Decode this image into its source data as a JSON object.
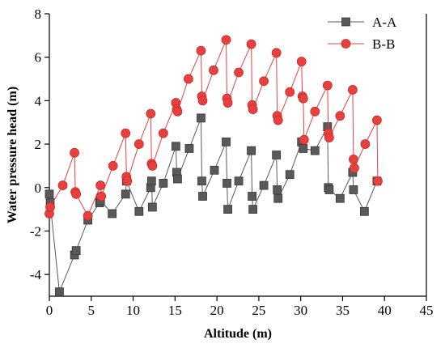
{
  "chart_data": {
    "type": "line",
    "xlabel": "Altitude (m)",
    "ylabel": "Water pressure head (m)",
    "xlim": [
      0,
      45
    ],
    "ylim": [
      -5,
      8
    ],
    "x_ticks": [
      0,
      5,
      10,
      15,
      20,
      25,
      30,
      35,
      40,
      45
    ],
    "y_ticks": [
      -4,
      -2,
      0,
      2,
      4,
      6,
      8
    ],
    "grid": false,
    "legend_position": "top-right",
    "series": [
      {
        "name": "A-A",
        "color": "#595959",
        "marker": "square",
        "points": [
          [
            0.0,
            -0.3
          ],
          [
            0.1,
            -0.7
          ],
          [
            1.2,
            -4.8
          ],
          [
            3.0,
            -3.1
          ],
          [
            3.2,
            -2.9
          ],
          [
            4.6,
            -1.5
          ],
          [
            6.0,
            -0.7
          ],
          [
            6.1,
            -0.6
          ],
          [
            7.5,
            -1.2
          ],
          [
            9.1,
            -0.3
          ],
          [
            9.2,
            0.3
          ],
          [
            10.7,
            -1.1
          ],
          [
            12.1,
            0.0
          ],
          [
            12.2,
            0.3
          ],
          [
            12.3,
            -0.9
          ],
          [
            13.6,
            0.2
          ],
          [
            15.1,
            1.9
          ],
          [
            15.2,
            0.7
          ],
          [
            15.3,
            0.4
          ],
          [
            16.7,
            1.8
          ],
          [
            18.1,
            3.2
          ],
          [
            18.2,
            0.3
          ],
          [
            18.3,
            -0.4
          ],
          [
            19.7,
            0.8
          ],
          [
            21.1,
            2.1
          ],
          [
            21.2,
            0.2
          ],
          [
            21.3,
            -1.0
          ],
          [
            22.6,
            0.3
          ],
          [
            24.1,
            1.7
          ],
          [
            24.2,
            -0.4
          ],
          [
            24.3,
            -1.0
          ],
          [
            25.6,
            0.1
          ],
          [
            27.1,
            1.5
          ],
          [
            27.2,
            -0.1
          ],
          [
            27.3,
            -0.5
          ],
          [
            28.7,
            0.6
          ],
          [
            30.1,
            2.1
          ],
          [
            30.3,
            1.8
          ],
          [
            31.7,
            1.7
          ],
          [
            33.2,
            2.8
          ],
          [
            33.3,
            0.0
          ],
          [
            33.4,
            -0.1
          ],
          [
            34.7,
            -0.5
          ],
          [
            36.2,
            0.7
          ],
          [
            36.3,
            -0.1
          ],
          [
            37.6,
            -1.1
          ],
          [
            39.1,
            0.3
          ]
        ]
      },
      {
        "name": "B-B",
        "color": "#e8403f",
        "marker": "circle",
        "points": [
          [
            0.0,
            -1.2
          ],
          [
            0.1,
            -0.9
          ],
          [
            1.6,
            0.1
          ],
          [
            3.0,
            1.6
          ],
          [
            3.1,
            -0.2
          ],
          [
            3.2,
            -0.3
          ],
          [
            4.6,
            -1.3
          ],
          [
            6.1,
            0.1
          ],
          [
            6.2,
            -0.4
          ],
          [
            7.6,
            1.0
          ],
          [
            9.1,
            2.5
          ],
          [
            9.2,
            0.5
          ],
          [
            9.3,
            0.3
          ],
          [
            10.7,
            2.0
          ],
          [
            12.1,
            3.4
          ],
          [
            12.2,
            1.1
          ],
          [
            12.3,
            1.0
          ],
          [
            13.6,
            2.5
          ],
          [
            15.1,
            3.9
          ],
          [
            15.2,
            3.6
          ],
          [
            15.3,
            3.5
          ],
          [
            16.6,
            5.0
          ],
          [
            18.1,
            6.3
          ],
          [
            18.2,
            4.2
          ],
          [
            18.3,
            4.0
          ],
          [
            19.6,
            5.4
          ],
          [
            21.1,
            6.8
          ],
          [
            21.2,
            4.1
          ],
          [
            21.3,
            3.9
          ],
          [
            22.6,
            5.3
          ],
          [
            24.1,
            6.6
          ],
          [
            24.2,
            3.8
          ],
          [
            24.3,
            3.6
          ],
          [
            25.6,
            4.9
          ],
          [
            27.1,
            6.2
          ],
          [
            27.2,
            3.3
          ],
          [
            27.3,
            3.1
          ],
          [
            28.7,
            4.4
          ],
          [
            30.1,
            5.8
          ],
          [
            30.2,
            4.2
          ],
          [
            30.3,
            4.1
          ],
          [
            30.4,
            2.2
          ],
          [
            31.7,
            3.5
          ],
          [
            33.2,
            4.7
          ],
          [
            33.3,
            2.5
          ],
          [
            33.4,
            2.3
          ],
          [
            34.7,
            3.3
          ],
          [
            36.2,
            4.5
          ],
          [
            36.3,
            1.3
          ],
          [
            36.4,
            0.9
          ],
          [
            37.7,
            2.0
          ],
          [
            39.1,
            3.1
          ],
          [
            39.2,
            0.3
          ]
        ]
      }
    ]
  }
}
